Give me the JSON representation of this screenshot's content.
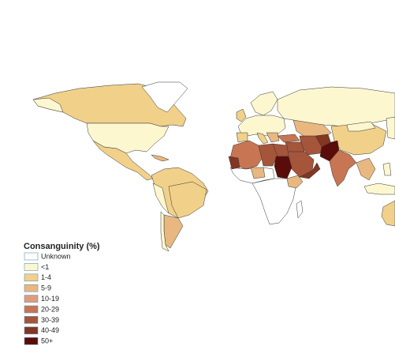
{
  "legend": {
    "title": "Consanguinity (%)",
    "items": [
      {
        "label": "Unknown",
        "color": "#ffffff"
      },
      {
        "label": "<1",
        "color": "#fdf7cf"
      },
      {
        "label": "1-4",
        "color": "#f1d08a"
      },
      {
        "label": "5-9",
        "color": "#e8b880"
      },
      {
        "label": "10-19",
        "color": "#e09c7a"
      },
      {
        "label": "20-29",
        "color": "#c77552"
      },
      {
        "label": "30-39",
        "color": "#a5553a"
      },
      {
        "label": "40-49",
        "color": "#833622"
      },
      {
        "label": "50+",
        "color": "#5a0c0a"
      }
    ]
  }
}
